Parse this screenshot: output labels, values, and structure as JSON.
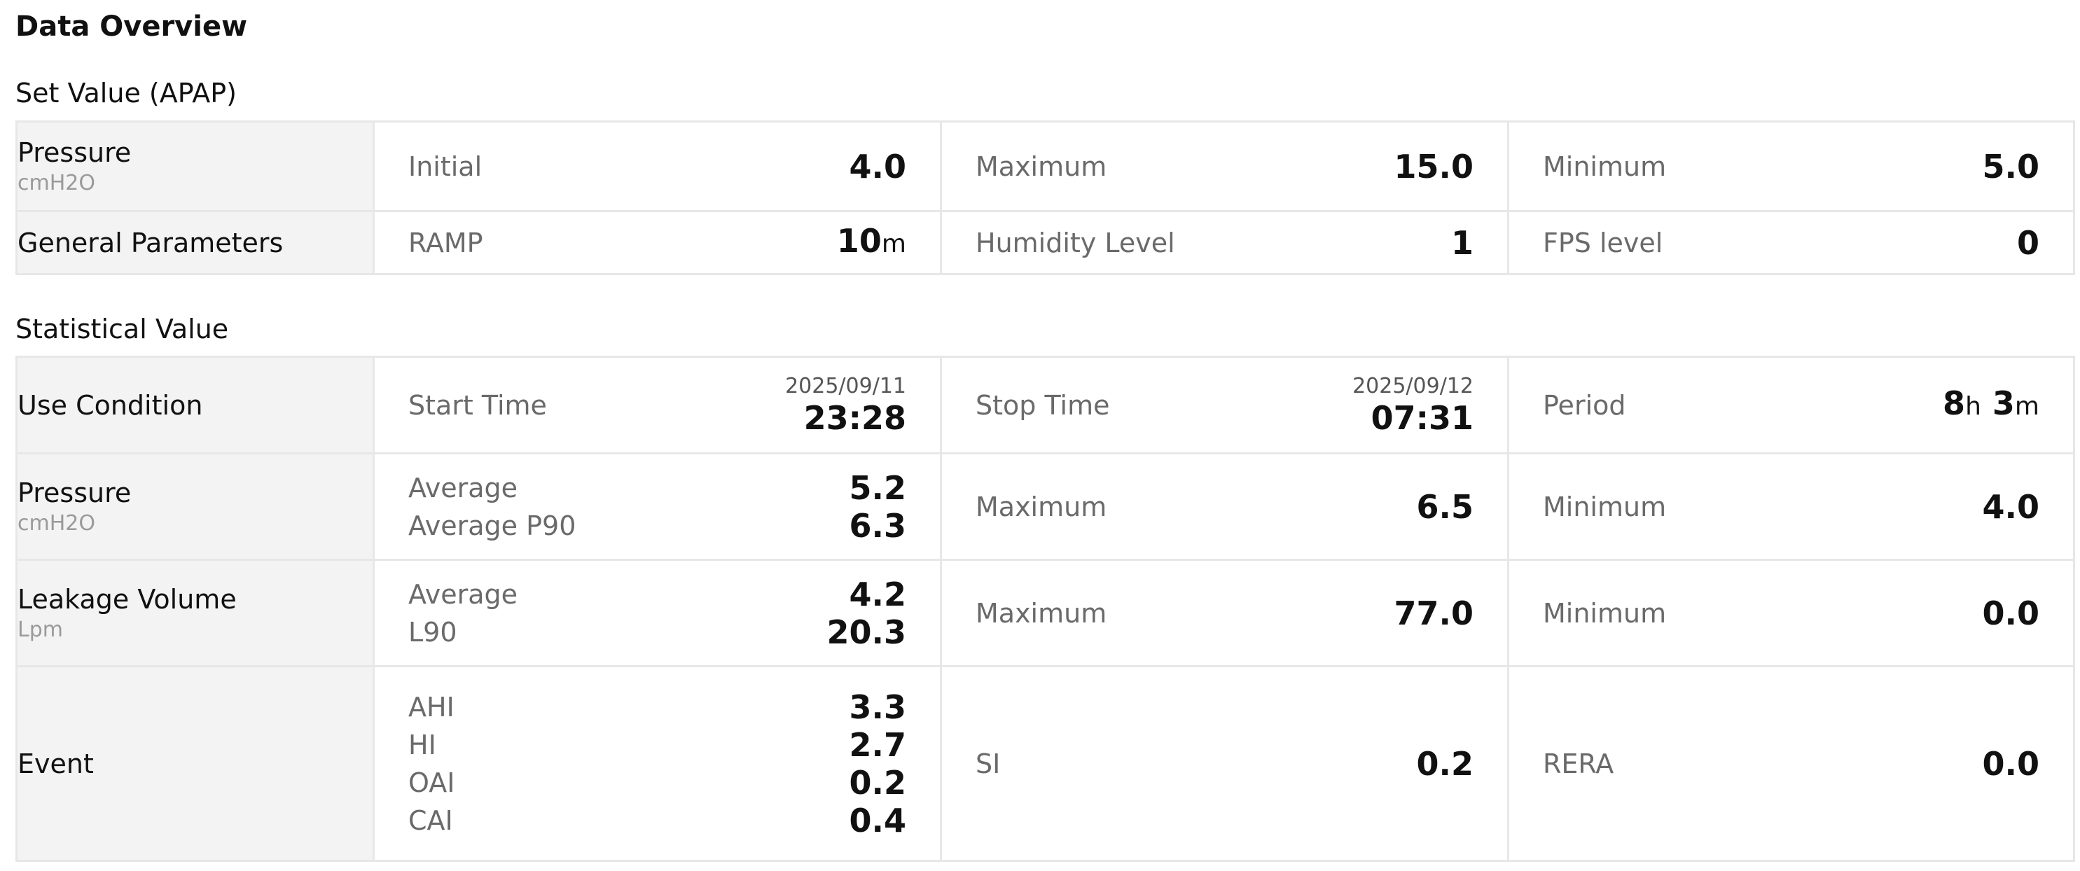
{
  "page_title": "Data Overview",
  "set_value": {
    "title": "Set Value (APAP)",
    "pressure": {
      "label": "Pressure",
      "unit": "cmH2O",
      "initial_label": "Initial",
      "initial_value": "4.0",
      "maximum_label": "Maximum",
      "maximum_value": "15.0",
      "minimum_label": "Minimum",
      "minimum_value": "5.0"
    },
    "general": {
      "label": "General Parameters",
      "ramp_label": "RAMP",
      "ramp_value": "10",
      "ramp_unit": "m",
      "humidity_label": "Humidity Level",
      "humidity_value": "1",
      "fps_label": "FPS level",
      "fps_value": "0"
    }
  },
  "statistical_value": {
    "title": "Statistical Value",
    "use_condition": {
      "label": "Use Condition",
      "start_label": "Start Time",
      "start_date": "2025/09/11",
      "start_time": "23:28",
      "stop_label": "Stop Time",
      "stop_date": "2025/09/12",
      "stop_time": "07:31",
      "period_label": "Period",
      "period_hours": "8",
      "period_h_unit": "h",
      "period_minutes": "3",
      "period_m_unit": "m"
    },
    "pressure": {
      "label": "Pressure",
      "unit": "cmH2O",
      "average_label": "Average",
      "average_value": "5.2",
      "p90_label": "Average P90",
      "p90_value": "6.3",
      "maximum_label": "Maximum",
      "maximum_value": "6.5",
      "minimum_label": "Minimum",
      "minimum_value": "4.0"
    },
    "leakage": {
      "label": "Leakage Volume",
      "unit": "Lpm",
      "average_label": "Average",
      "average_value": "4.2",
      "l90_label": "L90",
      "l90_value": "20.3",
      "maximum_label": "Maximum",
      "maximum_value": "77.0",
      "minimum_label": "Minimum",
      "minimum_value": "0.0"
    },
    "event": {
      "label": "Event",
      "ahi_label": "AHI",
      "ahi_value": "3.3",
      "hi_label": "HI",
      "hi_value": "2.7",
      "oai_label": "OAI",
      "oai_value": "0.2",
      "cai_label": "CAI",
      "cai_value": "0.4",
      "si_label": "SI",
      "si_value": "0.2",
      "rera_label": "RERA",
      "rera_value": "0.0"
    }
  }
}
